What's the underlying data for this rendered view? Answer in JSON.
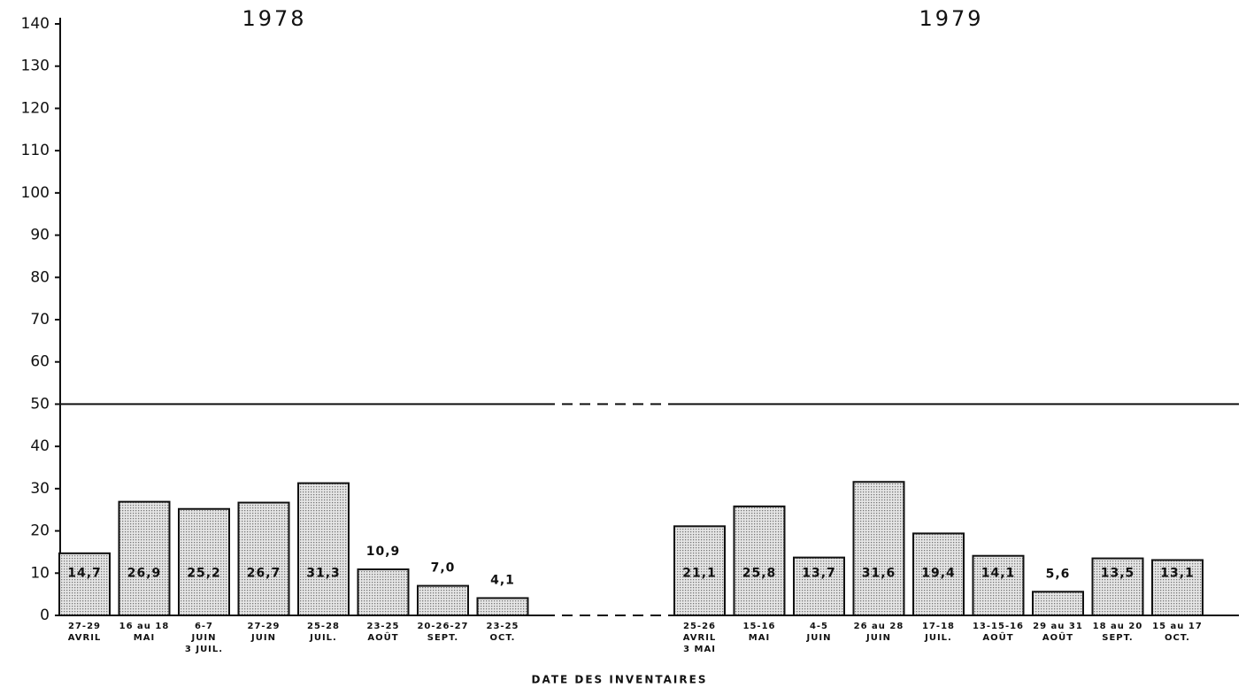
{
  "chart_data": {
    "type": "bar",
    "xlabel": "DATE DES INVENTAIRES",
    "ylim": [
      0,
      140
    ],
    "yticks": [
      0,
      10,
      20,
      30,
      40,
      50,
      60,
      70,
      80,
      90,
      100,
      110,
      120,
      130,
      140
    ],
    "reference_line": 50,
    "color": "#cfcfcf",
    "groups": [
      {
        "name": "1978",
        "categories": [
          [
            "27-29",
            "AVRIL"
          ],
          [
            "16 au 18",
            "MAI"
          ],
          [
            "6-7",
            "JUIN",
            "3 JUIL."
          ],
          [
            "27-29",
            "JUIN"
          ],
          [
            "25-28",
            "JUIL."
          ],
          [
            "23-25",
            "AOÛT"
          ],
          [
            "20-26-27",
            "SEPT."
          ],
          [
            "23-25",
            "OCT."
          ]
        ],
        "values": [
          14.7,
          26.9,
          25.2,
          26.7,
          31.3,
          10.9,
          7.0,
          4.1
        ],
        "value_labels": [
          "14,7",
          "26,9",
          "25,2",
          "26,7",
          "31,3",
          "10,9",
          "7,0",
          "4,1"
        ]
      },
      {
        "name": "1979",
        "categories": [
          [
            "25-26",
            "AVRIL",
            "3 MAI"
          ],
          [
            "15-16",
            "MAI"
          ],
          [
            "4-5",
            "JUIN"
          ],
          [
            "26 au 28",
            "JUIN"
          ],
          [
            "17-18",
            "JUIL."
          ],
          [
            "13-15-16",
            "AOÛT"
          ],
          [
            "29 au 31",
            "AOÛT"
          ],
          [
            "18 au 20",
            "SEPT."
          ],
          [
            "15 au 17",
            "OCT."
          ]
        ],
        "values": [
          21.1,
          25.8,
          13.7,
          31.6,
          19.4,
          14.1,
          5.6,
          13.5,
          13.1
        ],
        "value_labels": [
          "21,1",
          "25,8",
          "13,7",
          "31,6",
          "19,4",
          "14,1",
          "5,6",
          "13,5",
          "13,1"
        ]
      }
    ]
  }
}
